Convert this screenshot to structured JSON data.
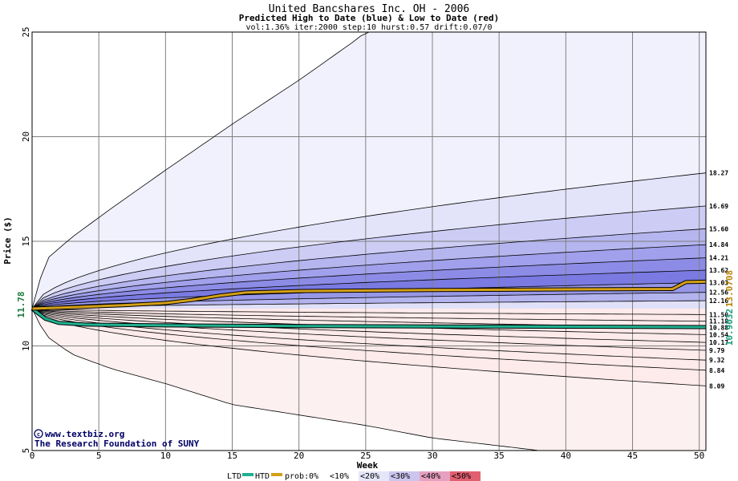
{
  "chart_data": {
    "type": "area",
    "title": "United Bancshares Inc. OH - 2006",
    "subtitle": "Predicted High to Date (blue) &  Low to Date (red)",
    "params": "vol:1.36% iter:2000 step:10 hurst:0.57 drift:0.07/0",
    "xlabel": "Week",
    "ylabel": "Price ($)",
    "xlim": [
      0,
      50.5
    ],
    "ylim": [
      5,
      25
    ],
    "xticks": [
      0,
      5,
      10,
      15,
      20,
      25,
      30,
      35,
      40,
      45,
      50
    ],
    "yticks": [
      5,
      10,
      15,
      20,
      25
    ],
    "start_price": 11.78,
    "start_label": "11.78",
    "grid": true,
    "outer_envelope": {
      "upper": [
        [
          0,
          11.78
        ],
        [
          1,
          14.1
        ],
        [
          3,
          15.2
        ],
        [
          6,
          16.6
        ],
        [
          10,
          18.4
        ],
        [
          15,
          20.6
        ],
        [
          20,
          22.7
        ],
        [
          24,
          24.5
        ],
        [
          25,
          25
        ]
      ],
      "lower": [
        [
          0,
          11.78
        ],
        [
          1,
          10.5
        ],
        [
          3,
          9.6
        ],
        [
          6,
          8.9
        ],
        [
          10,
          8.2
        ],
        [
          15,
          7.2
        ],
        [
          20,
          6.7
        ],
        [
          25,
          6.2
        ],
        [
          30,
          5.6
        ],
        [
          38,
          5.0
        ]
      ]
    },
    "high_levels": [
      {
        "label": "18.27",
        "value": 18.27,
        "fill": "#e3e3fa"
      },
      {
        "label": "16.69",
        "value": 16.69,
        "fill": "#ccccf5"
      },
      {
        "label": "15.60",
        "value": 15.6,
        "fill": "#b5b5ef"
      },
      {
        "label": "14.84",
        "value": 14.84,
        "fill": "#a0a0ec"
      },
      {
        "label": "14.21",
        "value": 14.21,
        "fill": "#8c8ce6"
      },
      {
        "label": "13.62",
        "value": 13.62,
        "fill": "#7a7ae2"
      },
      {
        "label": "13.03",
        "value": 13.03,
        "fill": "#9797e8"
      },
      {
        "label": "12.56",
        "value": 12.56,
        "fill": "#b3b3ee"
      },
      {
        "label": "12.16",
        "value": 12.16,
        "fill": "#e0e0f8"
      }
    ],
    "low_levels": [
      {
        "label": "11.50",
        "value": 11.5,
        "fill": "#fbe1e1"
      },
      {
        "label": "11.18",
        "value": 11.18,
        "fill": "#f7c6c6"
      },
      {
        "label": "10.88",
        "value": 10.88,
        "fill": "#f3a6a6"
      },
      {
        "label": "10.54",
        "value": 10.54,
        "fill": "#f08080"
      },
      {
        "label": "10.17",
        "value": 10.17,
        "fill": "#f07676"
      },
      {
        "label": "9.79",
        "value": 9.79,
        "fill": "#f29090"
      },
      {
        "label": "9.32",
        "value": 9.32,
        "fill": "#f5aaaa"
      },
      {
        "label": "8.84",
        "value": 8.84,
        "fill": "#fad0d0"
      },
      {
        "label": "8.09",
        "value": 8.09,
        "fill": "#fdeaea"
      }
    ],
    "htd_series": {
      "name": "HTD",
      "color": "#d4a017",
      "final_label": "13.0708",
      "points": [
        [
          0,
          11.78
        ],
        [
          3,
          11.85
        ],
        [
          7,
          11.95
        ],
        [
          10,
          12.05
        ],
        [
          12,
          12.2
        ],
        [
          14,
          12.4
        ],
        [
          16,
          12.55
        ],
        [
          20,
          12.62
        ],
        [
          30,
          12.67
        ],
        [
          40,
          12.7
        ],
        [
          48,
          12.72
        ],
        [
          49,
          13.05
        ],
        [
          50.5,
          13.07
        ]
      ]
    },
    "ltd_series": {
      "name": "LTD",
      "color": "#20b090",
      "final_label": "10.9032",
      "points": [
        [
          0,
          11.78
        ],
        [
          1,
          11.3
        ],
        [
          2,
          11.1
        ],
        [
          4,
          11.02
        ],
        [
          10,
          10.98
        ],
        [
          20,
          10.95
        ],
        [
          30,
          10.93
        ],
        [
          40,
          10.92
        ],
        [
          50.5,
          10.9
        ]
      ]
    },
    "legend": {
      "ltd": "LTD",
      "htd": "HTD",
      "prob_prefix": "prob:",
      "buckets": [
        {
          "label": "0%",
          "fill": "#ffffff"
        },
        {
          "label": "<10%",
          "fill": "#ffffff"
        },
        {
          "label": "<20%",
          "fill": "#e6e6fa"
        },
        {
          "label": "<30%",
          "fill": "#ccc6ee"
        },
        {
          "label": "<40%",
          "fill": "#e6a0c0"
        },
        {
          "label": "<50%",
          "fill": "#e06070"
        }
      ]
    }
  },
  "watermark": {
    "line1": "www.textbiz.org",
    "line2": "The Research Foundation of SUNY"
  }
}
